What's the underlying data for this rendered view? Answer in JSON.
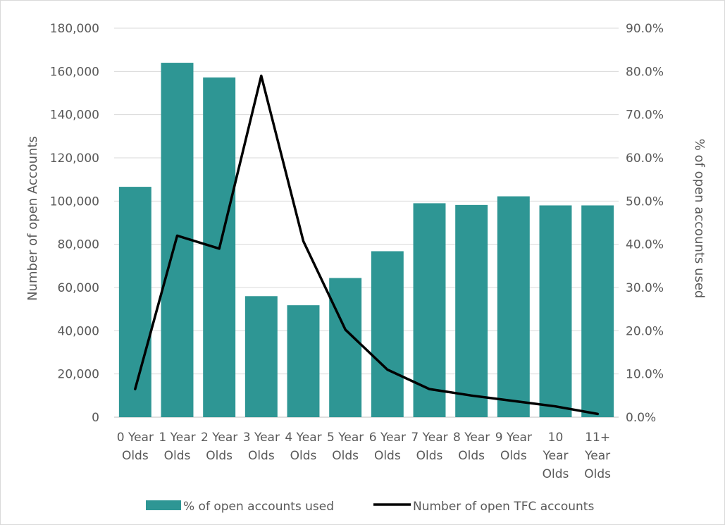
{
  "chart_data": {
    "type": "bar+line",
    "categories": [
      [
        "0 Year",
        "Olds"
      ],
      [
        "1 Year",
        "Olds"
      ],
      [
        "2 Year",
        "Olds"
      ],
      [
        "3 Year",
        "Olds"
      ],
      [
        "4 Year",
        "Olds"
      ],
      [
        "5 Year",
        "Olds"
      ],
      [
        "6 Year",
        "Olds"
      ],
      [
        "7 Year",
        "Olds"
      ],
      [
        "8 Year",
        "Olds"
      ],
      [
        "9 Year",
        "Olds"
      ],
      [
        "10",
        "Year",
        "Olds"
      ],
      [
        "11+",
        "Year",
        "Olds"
      ]
    ],
    "series": [
      {
        "name": "% of open accounts used",
        "type": "bar",
        "axis": "right",
        "color": "#2e9694",
        "values": [
          53.3,
          82.0,
          78.6,
          28.0,
          25.9,
          32.2,
          38.4,
          49.5,
          49.1,
          51.1,
          49.0,
          49.0
        ]
      },
      {
        "name": "Number of open TFC accounts",
        "type": "line",
        "axis": "left",
        "color": "#000000",
        "values": [
          13000,
          84000,
          78000,
          158000,
          81500,
          40500,
          22000,
          13000,
          10000,
          7500,
          5000,
          1500
        ]
      }
    ],
    "y_left": {
      "label": "Number of open Accounts",
      "min": 0,
      "max": 180000,
      "step": 20000,
      "tick_labels": [
        "0",
        "20,000",
        "40,000",
        "60,000",
        "80,000",
        "100,000",
        "120,000",
        "140,000",
        "160,000",
        "180,000"
      ]
    },
    "y_right": {
      "label": "% of open accounts used",
      "min": 0,
      "max": 90,
      "step": 10,
      "tick_labels": [
        "0.0%",
        "10.0%",
        "20.0%",
        "30.0%",
        "40.0%",
        "50.0%",
        "60.0%",
        "70.0%",
        "80.0%",
        "90.0%"
      ]
    },
    "grid": true,
    "legend_position": "bottom"
  }
}
